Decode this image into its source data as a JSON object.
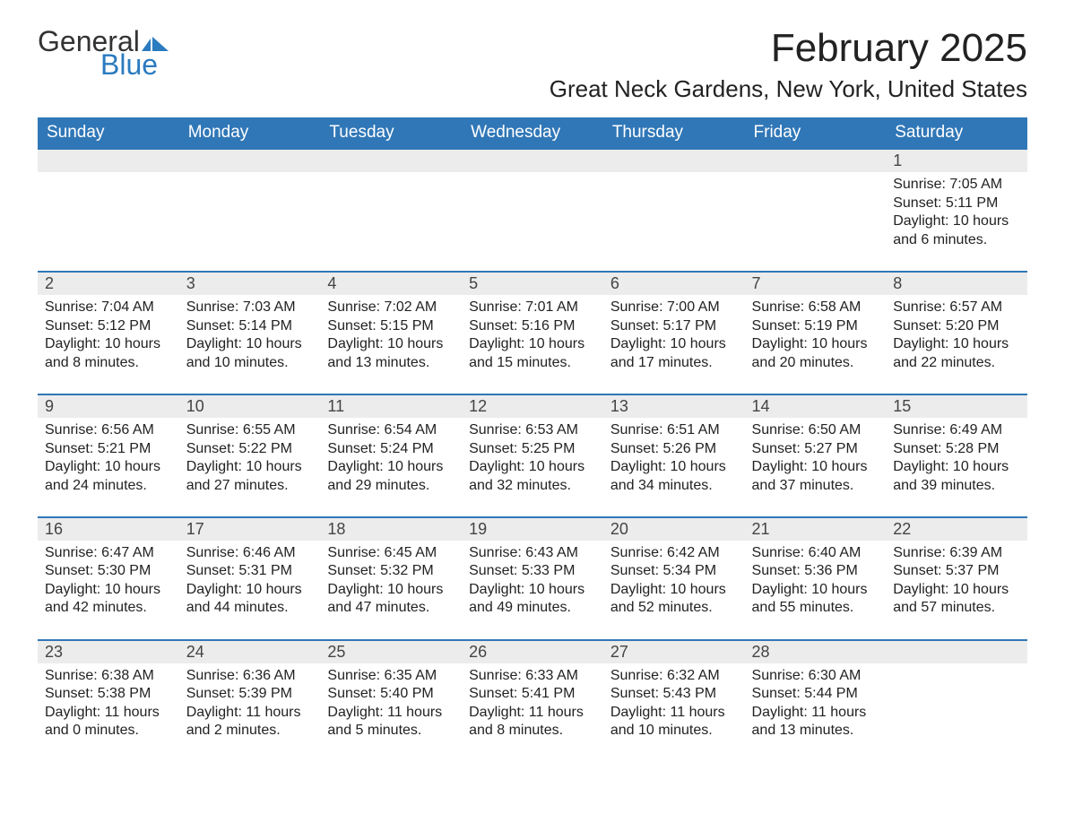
{
  "brand": {
    "word1": "General",
    "word2": "Blue",
    "word2_color": "#2a7bbf",
    "shape_color": "#2a7bbf"
  },
  "title": "February 2025",
  "location": "Great Neck Gardens, New York, United States",
  "colors": {
    "header_bg": "#3077b7",
    "header_text": "#ffffff",
    "daynum_bg": "#ececec",
    "row_divider": "#3077b7",
    "body_text": "#222222"
  },
  "columns": [
    "Sunday",
    "Monday",
    "Tuesday",
    "Wednesday",
    "Thursday",
    "Friday",
    "Saturday"
  ],
  "weeks": [
    {
      "days": [
        null,
        null,
        null,
        null,
        null,
        null,
        {
          "n": "1",
          "sunrise": "Sunrise: 7:05 AM",
          "sunset": "Sunset: 5:11 PM",
          "daylight": "Daylight: 10 hours and 6 minutes."
        }
      ]
    },
    {
      "days": [
        {
          "n": "2",
          "sunrise": "Sunrise: 7:04 AM",
          "sunset": "Sunset: 5:12 PM",
          "daylight": "Daylight: 10 hours and 8 minutes."
        },
        {
          "n": "3",
          "sunrise": "Sunrise: 7:03 AM",
          "sunset": "Sunset: 5:14 PM",
          "daylight": "Daylight: 10 hours and 10 minutes."
        },
        {
          "n": "4",
          "sunrise": "Sunrise: 7:02 AM",
          "sunset": "Sunset: 5:15 PM",
          "daylight": "Daylight: 10 hours and 13 minutes."
        },
        {
          "n": "5",
          "sunrise": "Sunrise: 7:01 AM",
          "sunset": "Sunset: 5:16 PM",
          "daylight": "Daylight: 10 hours and 15 minutes."
        },
        {
          "n": "6",
          "sunrise": "Sunrise: 7:00 AM",
          "sunset": "Sunset: 5:17 PM",
          "daylight": "Daylight: 10 hours and 17 minutes."
        },
        {
          "n": "7",
          "sunrise": "Sunrise: 6:58 AM",
          "sunset": "Sunset: 5:19 PM",
          "daylight": "Daylight: 10 hours and 20 minutes."
        },
        {
          "n": "8",
          "sunrise": "Sunrise: 6:57 AM",
          "sunset": "Sunset: 5:20 PM",
          "daylight": "Daylight: 10 hours and 22 minutes."
        }
      ]
    },
    {
      "days": [
        {
          "n": "9",
          "sunrise": "Sunrise: 6:56 AM",
          "sunset": "Sunset: 5:21 PM",
          "daylight": "Daylight: 10 hours and 24 minutes."
        },
        {
          "n": "10",
          "sunrise": "Sunrise: 6:55 AM",
          "sunset": "Sunset: 5:22 PM",
          "daylight": "Daylight: 10 hours and 27 minutes."
        },
        {
          "n": "11",
          "sunrise": "Sunrise: 6:54 AM",
          "sunset": "Sunset: 5:24 PM",
          "daylight": "Daylight: 10 hours and 29 minutes."
        },
        {
          "n": "12",
          "sunrise": "Sunrise: 6:53 AM",
          "sunset": "Sunset: 5:25 PM",
          "daylight": "Daylight: 10 hours and 32 minutes."
        },
        {
          "n": "13",
          "sunrise": "Sunrise: 6:51 AM",
          "sunset": "Sunset: 5:26 PM",
          "daylight": "Daylight: 10 hours and 34 minutes."
        },
        {
          "n": "14",
          "sunrise": "Sunrise: 6:50 AM",
          "sunset": "Sunset: 5:27 PM",
          "daylight": "Daylight: 10 hours and 37 minutes."
        },
        {
          "n": "15",
          "sunrise": "Sunrise: 6:49 AM",
          "sunset": "Sunset: 5:28 PM",
          "daylight": "Daylight: 10 hours and 39 minutes."
        }
      ]
    },
    {
      "days": [
        {
          "n": "16",
          "sunrise": "Sunrise: 6:47 AM",
          "sunset": "Sunset: 5:30 PM",
          "daylight": "Daylight: 10 hours and 42 minutes."
        },
        {
          "n": "17",
          "sunrise": "Sunrise: 6:46 AM",
          "sunset": "Sunset: 5:31 PM",
          "daylight": "Daylight: 10 hours and 44 minutes."
        },
        {
          "n": "18",
          "sunrise": "Sunrise: 6:45 AM",
          "sunset": "Sunset: 5:32 PM",
          "daylight": "Daylight: 10 hours and 47 minutes."
        },
        {
          "n": "19",
          "sunrise": "Sunrise: 6:43 AM",
          "sunset": "Sunset: 5:33 PM",
          "daylight": "Daylight: 10 hours and 49 minutes."
        },
        {
          "n": "20",
          "sunrise": "Sunrise: 6:42 AM",
          "sunset": "Sunset: 5:34 PM",
          "daylight": "Daylight: 10 hours and 52 minutes."
        },
        {
          "n": "21",
          "sunrise": "Sunrise: 6:40 AM",
          "sunset": "Sunset: 5:36 PM",
          "daylight": "Daylight: 10 hours and 55 minutes."
        },
        {
          "n": "22",
          "sunrise": "Sunrise: 6:39 AM",
          "sunset": "Sunset: 5:37 PM",
          "daylight": "Daylight: 10 hours and 57 minutes."
        }
      ]
    },
    {
      "days": [
        {
          "n": "23",
          "sunrise": "Sunrise: 6:38 AM",
          "sunset": "Sunset: 5:38 PM",
          "daylight": "Daylight: 11 hours and 0 minutes."
        },
        {
          "n": "24",
          "sunrise": "Sunrise: 6:36 AM",
          "sunset": "Sunset: 5:39 PM",
          "daylight": "Daylight: 11 hours and 2 minutes."
        },
        {
          "n": "25",
          "sunrise": "Sunrise: 6:35 AM",
          "sunset": "Sunset: 5:40 PM",
          "daylight": "Daylight: 11 hours and 5 minutes."
        },
        {
          "n": "26",
          "sunrise": "Sunrise: 6:33 AM",
          "sunset": "Sunset: 5:41 PM",
          "daylight": "Daylight: 11 hours and 8 minutes."
        },
        {
          "n": "27",
          "sunrise": "Sunrise: 6:32 AM",
          "sunset": "Sunset: 5:43 PM",
          "daylight": "Daylight: 11 hours and 10 minutes."
        },
        {
          "n": "28",
          "sunrise": "Sunrise: 6:30 AM",
          "sunset": "Sunset: 5:44 PM",
          "daylight": "Daylight: 11 hours and 13 minutes."
        },
        null
      ]
    }
  ]
}
